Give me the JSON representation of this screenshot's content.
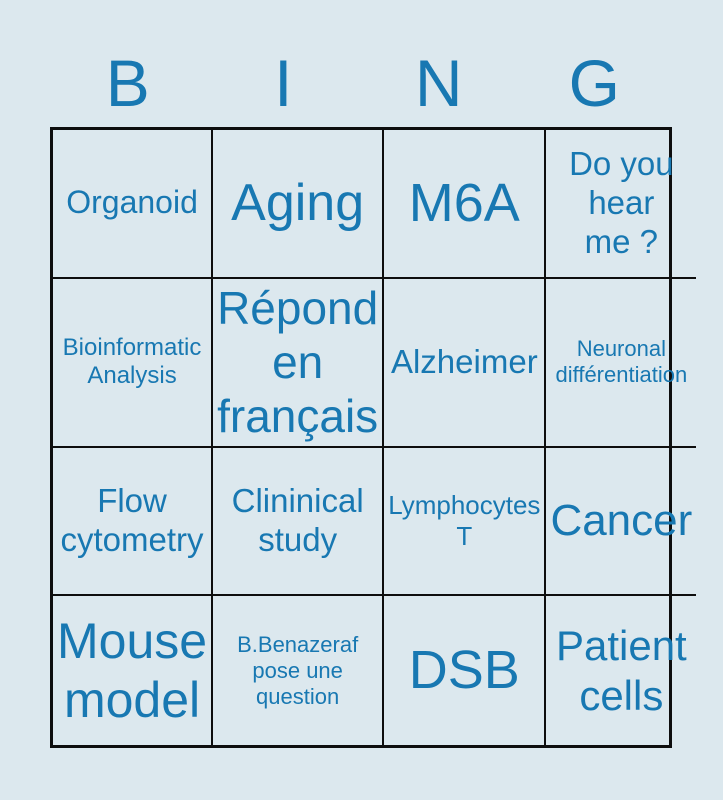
{
  "colors": {
    "background": "#dce8ee",
    "text": "#1878b2",
    "grid_border": "#0e0e0e"
  },
  "header": {
    "letters": [
      "B",
      "I",
      "N",
      "G"
    ]
  },
  "cells": [
    {
      "text": "Organoid"
    },
    {
      "text": "Aging"
    },
    {
      "text": "M6A"
    },
    {
      "text": "Do you\nhear\nme ?"
    },
    {
      "text": "Bioinformatic\nAnalysis"
    },
    {
      "text": "Répond\nen\nfrançais"
    },
    {
      "text": "Alzheimer"
    },
    {
      "text": "Neuronal\ndifférentiation"
    },
    {
      "text": "Flow\ncytometry"
    },
    {
      "text": "Clininical\nstudy"
    },
    {
      "text": "Lymphocytes\nT"
    },
    {
      "text": "Cancer"
    },
    {
      "text": "Mouse\nmodel"
    },
    {
      "text": "B.Benazeraf\npose une\nquestion"
    },
    {
      "text": "DSB"
    },
    {
      "text": "Patient\ncells"
    }
  ]
}
